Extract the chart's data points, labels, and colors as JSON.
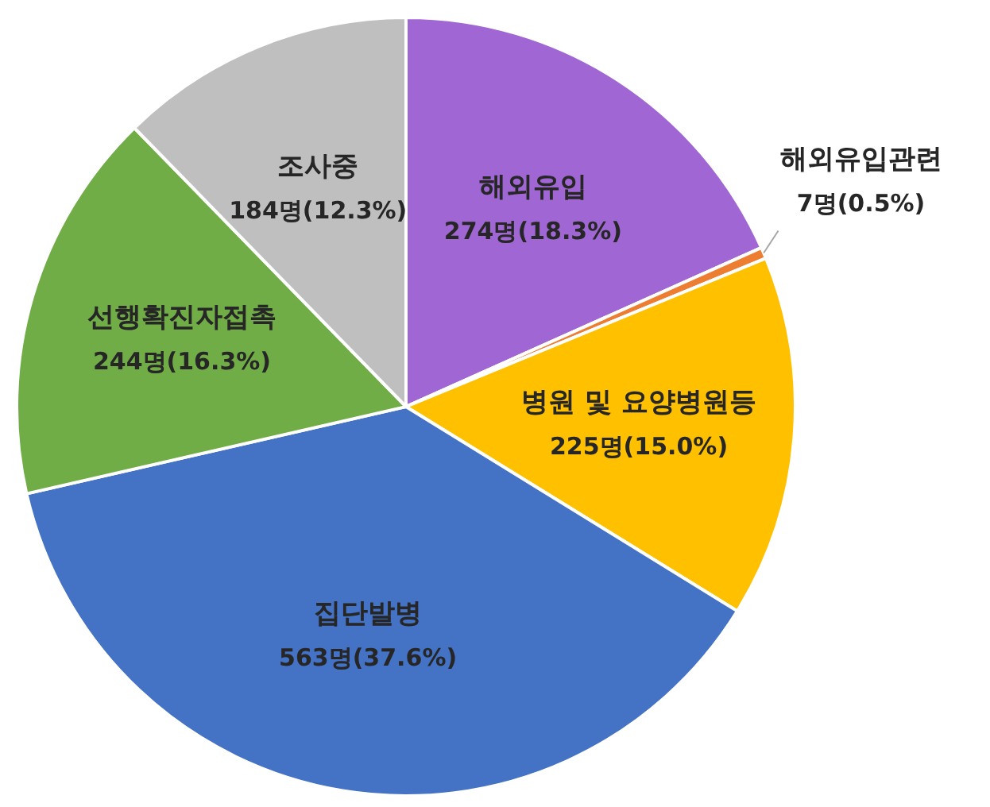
{
  "chart_data": {
    "type": "pie",
    "categories": [
      "해외유입",
      "해외유입관련",
      "병원 및 요양병원등",
      "집단발병",
      "선행확진자접촉",
      "조사중"
    ],
    "values": [
      274,
      7,
      225,
      563,
      244,
      184
    ],
    "value_labels": [
      "274명(18.3%)",
      "7명(0.5%)",
      "225명(15.0%)",
      "563명(37.6%)",
      "244명(16.3%)",
      "184명(12.3%)"
    ],
    "colors": [
      "#a066d3",
      "#ed7d31",
      "#ffc000",
      "#4472c4",
      "#70ad47",
      "#bfbfbf"
    ],
    "legend": false
  }
}
